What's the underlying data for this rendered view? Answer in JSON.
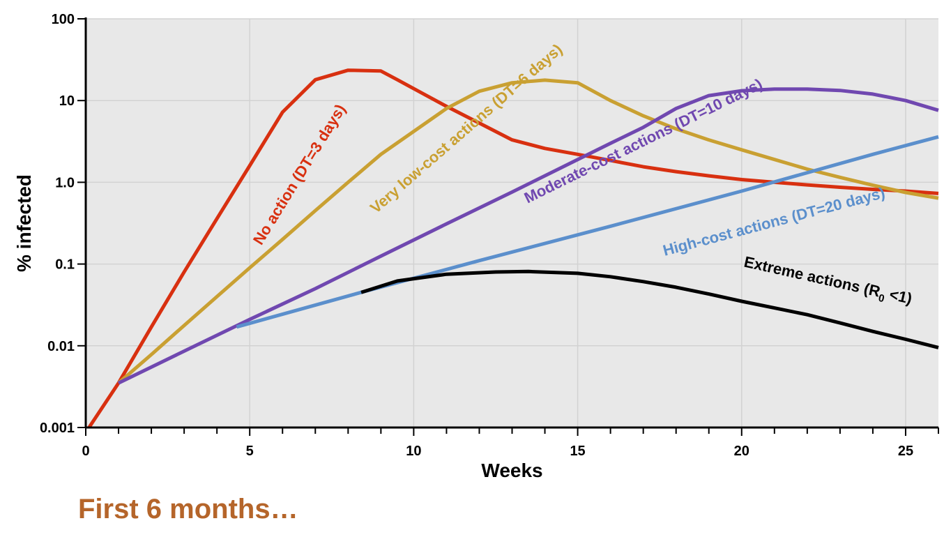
{
  "chart_data": {
    "type": "line",
    "x_scale": "linear",
    "y_scale": "log",
    "xlabel": "Weeks",
    "ylabel": "% infected",
    "xlim": [
      0,
      26
    ],
    "ylim": [
      0.001,
      100
    ],
    "x_ticks": [
      0,
      5,
      10,
      15,
      20,
      25
    ],
    "y_ticks": [
      0.001,
      0.01,
      0.1,
      1.0,
      10,
      100
    ],
    "y_tick_labels": [
      "0.001",
      "0.01",
      "0.1",
      "1.0",
      "10",
      "100"
    ],
    "grid": true,
    "background": "#e8e8e8",
    "series": [
      {
        "name": "No action (DT=3 days)",
        "label": "No action (DT=3 days)",
        "color": "#d83010",
        "points": [
          [
            0.1,
            0.001
          ],
          [
            1,
            0.0035
          ],
          [
            2,
            0.017
          ],
          [
            3,
            0.08
          ],
          [
            4,
            0.36
          ],
          [
            5,
            1.6
          ],
          [
            6,
            7.2
          ],
          [
            7,
            18
          ],
          [
            8,
            23.5
          ],
          [
            9,
            23
          ],
          [
            9.5,
            18
          ],
          [
            10,
            14
          ],
          [
            11,
            8.5
          ],
          [
            12,
            5.3
          ],
          [
            13,
            3.3
          ],
          [
            14,
            2.6
          ],
          [
            15,
            2.2
          ],
          [
            16,
            1.85
          ],
          [
            17,
            1.55
          ],
          [
            18,
            1.35
          ],
          [
            19,
            1.2
          ],
          [
            20,
            1.08
          ],
          [
            21,
            1.0
          ],
          [
            22,
            0.93
          ],
          [
            23,
            0.87
          ],
          [
            24,
            0.82
          ],
          [
            25,
            0.78
          ],
          [
            26,
            0.73
          ]
        ]
      },
      {
        "name": "Very low-cost actions (DT=6 days)",
        "label": "Very low-cost actions (DT=6 days)",
        "color": "#c9a032",
        "points": [
          [
            1,
            0.0035
          ],
          [
            2,
            0.0078
          ],
          [
            3,
            0.0177
          ],
          [
            4,
            0.04
          ],
          [
            5,
            0.09
          ],
          [
            6,
            0.2
          ],
          [
            7,
            0.45
          ],
          [
            8,
            1.0
          ],
          [
            9,
            2.2
          ],
          [
            10,
            4.2
          ],
          [
            11,
            8
          ],
          [
            12,
            13
          ],
          [
            13,
            16.5
          ],
          [
            14,
            17.8
          ],
          [
            15,
            16.5
          ],
          [
            16,
            10
          ],
          [
            17,
            6.5
          ],
          [
            18,
            4.5
          ],
          [
            19,
            3.3
          ],
          [
            20,
            2.5
          ],
          [
            21,
            1.9
          ],
          [
            22,
            1.45
          ],
          [
            23,
            1.15
          ],
          [
            24,
            0.92
          ],
          [
            25,
            0.75
          ],
          [
            26,
            0.64
          ]
        ]
      },
      {
        "name": "Moderate-cost actions (DT=10 days)",
        "label": "Moderate-cost actions (DT=10 days)",
        "color": "#7048b0",
        "points": [
          [
            1,
            0.0035
          ],
          [
            3,
            0.0086
          ],
          [
            5,
            0.021
          ],
          [
            7,
            0.05
          ],
          [
            9,
            0.125
          ],
          [
            11,
            0.31
          ],
          [
            13,
            0.76
          ],
          [
            15,
            1.9
          ],
          [
            16,
            3.0
          ],
          [
            17,
            4.7
          ],
          [
            18,
            8
          ],
          [
            19,
            11.5
          ],
          [
            20,
            13.2
          ],
          [
            21,
            13.8
          ],
          [
            22,
            13.8
          ],
          [
            23,
            13.3
          ],
          [
            24,
            12
          ],
          [
            25,
            10
          ],
          [
            26,
            7.6
          ]
        ]
      },
      {
        "name": "High-cost actions (DT=20 days)",
        "label": "High-cost actions (DT=20 days)",
        "color": "#5b8fcc",
        "points": [
          [
            4.6,
            0.017
          ],
          [
            8.4,
            0.045
          ],
          [
            12,
            0.11
          ],
          [
            16,
            0.29
          ],
          [
            20,
            0.78
          ],
          [
            24,
            2.2
          ],
          [
            26,
            3.6
          ]
        ]
      },
      {
        "name": "Extreme actions",
        "label": "Extreme actions (R",
        "label_subscript": "0",
        "label_suffix": " <1)",
        "color": "#000000",
        "points": [
          [
            8.4,
            0.045
          ],
          [
            9.5,
            0.062
          ],
          [
            11,
            0.075
          ],
          [
            12.5,
            0.08
          ],
          [
            13.5,
            0.081
          ],
          [
            15,
            0.077
          ],
          [
            16,
            0.07
          ],
          [
            17,
            0.061
          ],
          [
            18,
            0.052
          ],
          [
            19,
            0.043
          ],
          [
            20,
            0.035
          ],
          [
            21,
            0.029
          ],
          [
            22,
            0.024
          ],
          [
            23,
            0.019
          ],
          [
            24,
            0.015
          ],
          [
            25,
            0.012
          ],
          [
            26,
            0.0095
          ]
        ]
      }
    ]
  },
  "caption": "First 6 months…"
}
